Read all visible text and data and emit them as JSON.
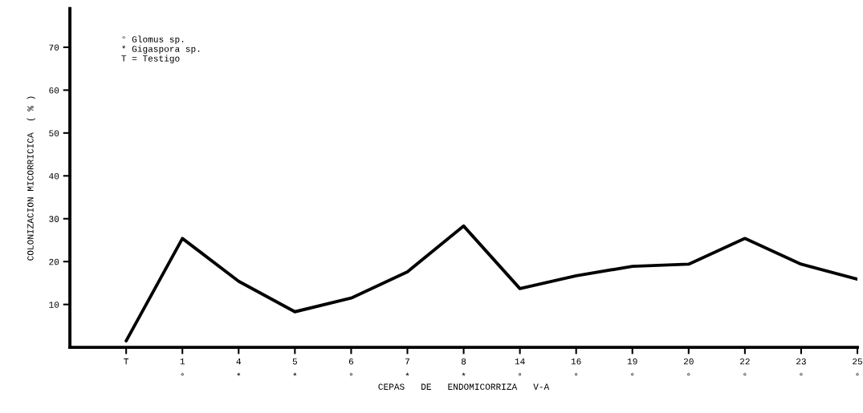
{
  "chart_data": {
    "type": "line",
    "categories": [
      "T",
      "1\n°",
      "4\n*",
      "5\n*",
      "6\n°",
      "7\n*",
      "8\n*",
      "14\n°",
      "16\n°",
      "19\n°",
      "20\n°",
      "22\n°",
      "23\n°",
      "25\n°"
    ],
    "values": [
      1.5,
      25.4,
      15.4,
      8.3,
      11.5,
      17.6,
      28.3,
      13.7,
      16.7,
      18.9,
      19.4,
      25.4,
      19.4,
      15.9
    ],
    "color": "#000000",
    "xlabel": "CEPAS   DE   ENDOMICORRIZA   V-A",
    "ylabel": "COLONIZACION MICORRICICA  ( % )",
    "ylim": [
      0,
      79
    ],
    "yticks": [
      10,
      20,
      30,
      40,
      50,
      60,
      70
    ],
    "annotations": [
      "° Glomus sp.\n* Gigaspora sp.\nT = Testigo"
    ],
    "grid": false,
    "marker": "none",
    "line_style": "solid"
  }
}
